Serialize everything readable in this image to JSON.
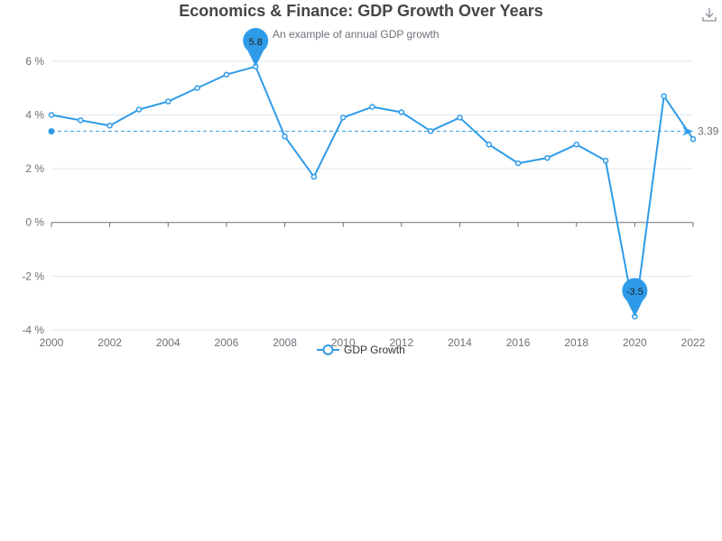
{
  "chart_data": {
    "type": "line",
    "title": "Economics & Finance: GDP Growth Over Years",
    "subtitle": "An example of annual GDP growth",
    "x": [
      2000,
      2001,
      2002,
      2003,
      2004,
      2005,
      2006,
      2007,
      2008,
      2009,
      2010,
      2011,
      2012,
      2013,
      2014,
      2015,
      2016,
      2017,
      2018,
      2019,
      2020,
      2021,
      2022
    ],
    "series": [
      {
        "name": "GDP Growth",
        "values": [
          4.0,
          3.8,
          3.6,
          4.2,
          4.5,
          5.0,
          5.5,
          5.8,
          3.2,
          1.7,
          3.9,
          4.3,
          4.1,
          3.4,
          3.9,
          2.9,
          2.2,
          2.4,
          2.9,
          2.3,
          -3.5,
          4.7,
          3.1
        ]
      }
    ],
    "xlim": [
      2000,
      2022
    ],
    "x_ticks": [
      "2000",
      "2002",
      "2004",
      "2006",
      "2008",
      "2010",
      "2012",
      "2014",
      "2016",
      "2018",
      "2020",
      "2022"
    ],
    "ylim": [
      -4,
      7
    ],
    "y_ticks": [
      "-4 %",
      "-2 %",
      "0 %",
      "2 %",
      "4 %",
      "6 %"
    ],
    "y_tick_values": [
      -4,
      -2,
      0,
      2,
      4,
      6
    ],
    "mark_points": [
      {
        "label": "5.8",
        "x": 2007,
        "y": 5.8
      },
      {
        "label": "-3.5",
        "x": 2020,
        "y": -3.5
      }
    ],
    "mark_line": {
      "label": "3.39",
      "value": 3.39
    },
    "grid": true,
    "legend_position": "bottom",
    "colors": {
      "series": "#2f9be8",
      "grid": "#e0e6f1",
      "axis": "#6e7079",
      "title": "#464646"
    }
  },
  "toolbar": {
    "download_icon": "download-icon"
  }
}
